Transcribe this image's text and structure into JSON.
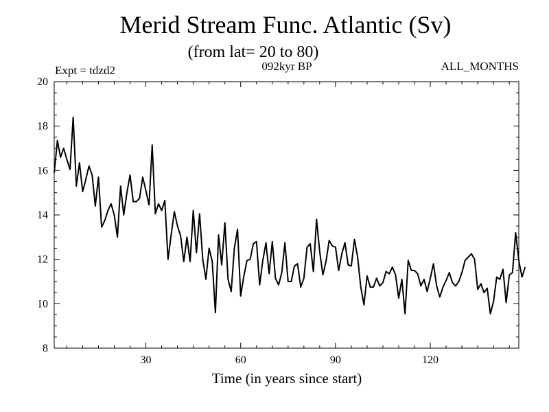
{
  "chart_data": {
    "type": "line",
    "title": "Merid Stream Func. Atlantic (Sv)",
    "subtitle": "(from lat= 20 to 80)",
    "experiment_label": "Expt = tdzd2",
    "period_label": "092kyr BP",
    "season_label": "ALL_MONTHS",
    "xlabel": "Time (in years since start)",
    "ylabel": "",
    "xlim": [
      1,
      148
    ],
    "ylim": [
      8,
      20
    ],
    "x_ticks": [
      30,
      60,
      90,
      120
    ],
    "y_ticks": [
      8,
      10,
      12,
      14,
      16,
      18,
      20
    ],
    "x_start": 1,
    "x_step": 1,
    "series": [
      {
        "name": "Merid Stream Func. Atlantic",
        "color": "#000000",
        "values": [
          15.9,
          17.35,
          16.6,
          17.0,
          16.5,
          16.05,
          18.4,
          15.3,
          16.35,
          15.05,
          15.6,
          16.2,
          15.8,
          14.4,
          15.7,
          13.45,
          13.75,
          14.2,
          14.5,
          14.0,
          13.0,
          15.3,
          14.0,
          15.0,
          15.8,
          14.6,
          14.6,
          14.75,
          15.7,
          15.1,
          14.45,
          17.15,
          14.05,
          14.5,
          14.2,
          14.65,
          12.0,
          13.1,
          14.15,
          13.5,
          13.05,
          11.9,
          13.0,
          11.9,
          14.2,
          12.3,
          14.05,
          12.0,
          11.1,
          12.5,
          11.9,
          9.6,
          13.1,
          11.75,
          13.65,
          11.1,
          10.55,
          12.5,
          13.35,
          10.35,
          11.25,
          11.95,
          12.0,
          12.7,
          12.8,
          10.85,
          11.95,
          12.75,
          11.35,
          12.8,
          11.15,
          10.85,
          11.4,
          12.75,
          11.0,
          11.0,
          11.7,
          11.8,
          10.75,
          11.15,
          12.55,
          12.7,
          11.45,
          13.8,
          12.35,
          11.3,
          11.9,
          12.85,
          12.6,
          12.55,
          11.5,
          12.25,
          12.75,
          11.75,
          11.7,
          12.9,
          12.1,
          10.75,
          9.95,
          11.25,
          10.75,
          10.75,
          11.15,
          10.8,
          10.95,
          11.45,
          11.35,
          11.65,
          11.3,
          10.25,
          11.1,
          9.55,
          11.95,
          11.5,
          11.5,
          11.35,
          10.8,
          11.1,
          10.55,
          11.15,
          11.8,
          10.8,
          10.3,
          10.75,
          11.05,
          11.4,
          10.95,
          10.8,
          11.0,
          11.4,
          11.95,
          12.1,
          12.25,
          12.0,
          10.65,
          10.9,
          10.5,
          10.7,
          9.55,
          10.1,
          11.2,
          11.1,
          11.55,
          10.05,
          11.3,
          11.4,
          13.2,
          11.95,
          11.2,
          11.65
        ]
      }
    ]
  }
}
